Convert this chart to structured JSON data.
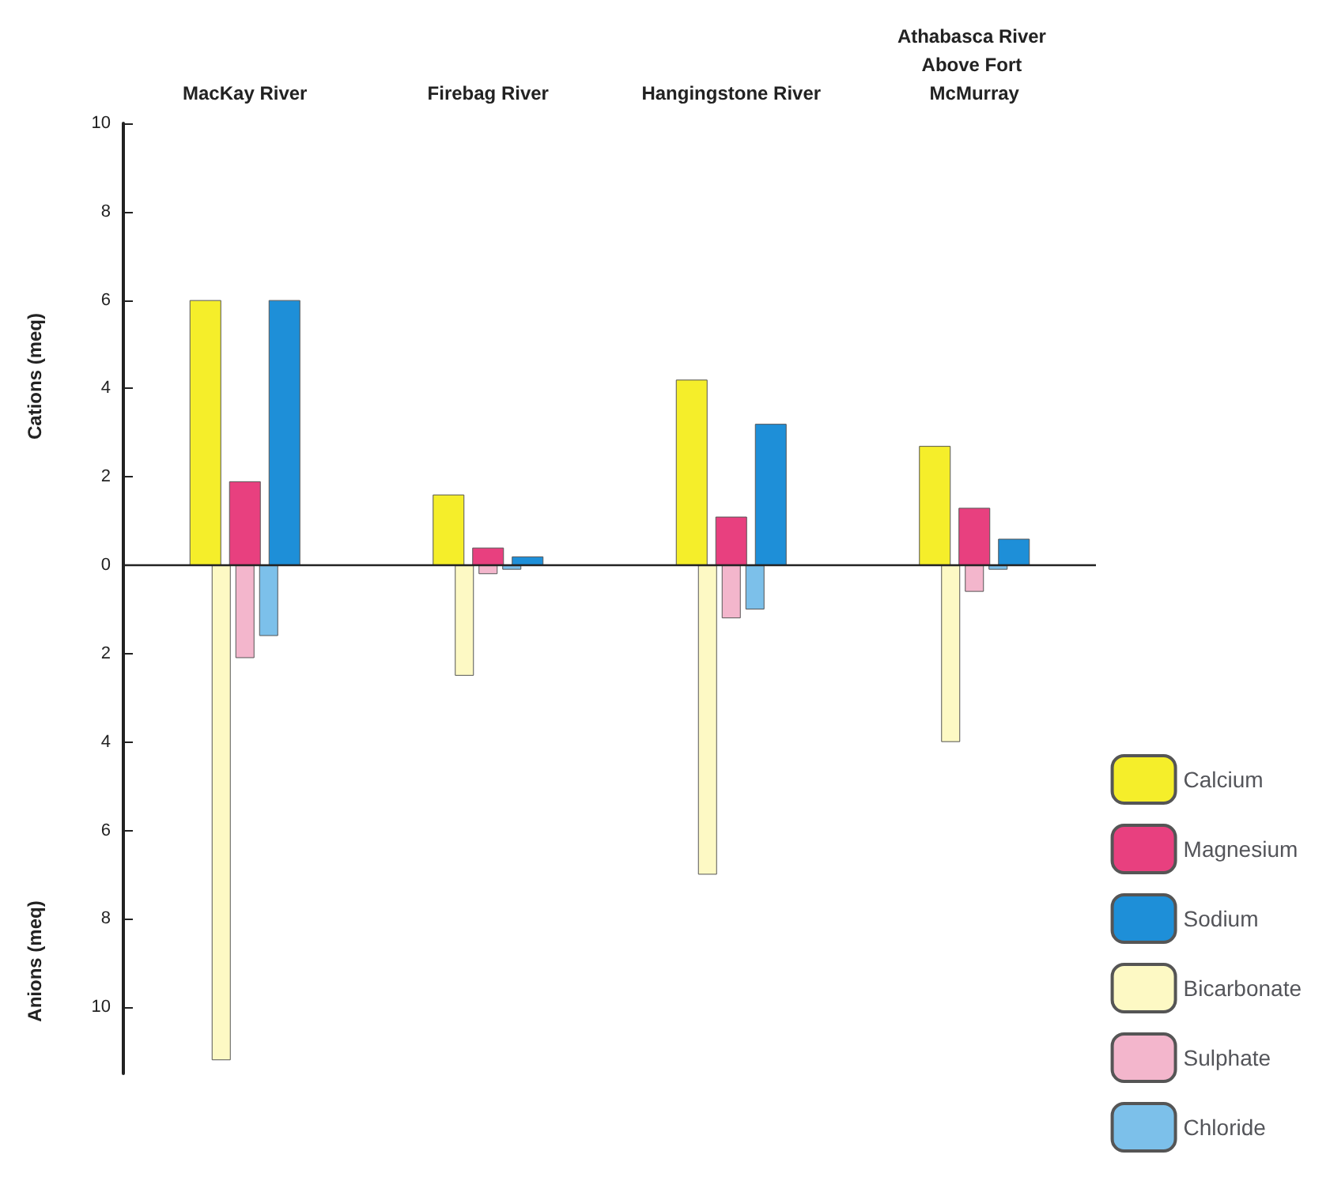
{
  "chart_data": {
    "type": "bar",
    "categories": [
      "MacKay River",
      "Firebag River",
      "Hangingstone River",
      "Athabasca River Above Fort McMurray"
    ],
    "ylabel": "Cations (meq)",
    "annotations": [
      "Anions (meq)"
    ],
    "ylim": [
      -11.5,
      10
    ],
    "yticks": [
      {
        "value": -10,
        "label": "10"
      },
      {
        "value": -8,
        "label": "8"
      },
      {
        "value": -6,
        "label": "6"
      },
      {
        "value": -4,
        "label": "4"
      },
      {
        "value": -2,
        "label": "2"
      },
      0,
      2,
      4,
      6,
      8,
      10
    ],
    "grid": false,
    "legend": "bottom right",
    "ref_lines": [
      {
        "axis": "y",
        "value": 0
      }
    ],
    "series": [
      {
        "name": "Calcium",
        "color": "#f5ee2a",
        "values": [
          6.0,
          1.6,
          4.2,
          2.7
        ]
      },
      {
        "name": "Magnesium",
        "color": "#e8407f",
        "values": [
          1.9,
          0.4,
          1.1,
          1.3
        ]
      },
      {
        "name": "Sodium",
        "color": "#1e8fd8",
        "values": [
          6.0,
          0.2,
          3.2,
          0.6
        ]
      },
      {
        "name": "Bicarbonate",
        "color": "#fdf9c4",
        "values": [
          -11.2,
          -2.5,
          -7.0,
          -4.0
        ]
      },
      {
        "name": "Sulphate",
        "color": "#f3b6cc",
        "values": [
          -2.1,
          -0.2,
          -1.2,
          -0.6
        ]
      },
      {
        "name": "Chloride",
        "color": "#7cc0ea",
        "values": [
          -1.6,
          -0.1,
          -1.0,
          -0.1
        ]
      }
    ]
  }
}
